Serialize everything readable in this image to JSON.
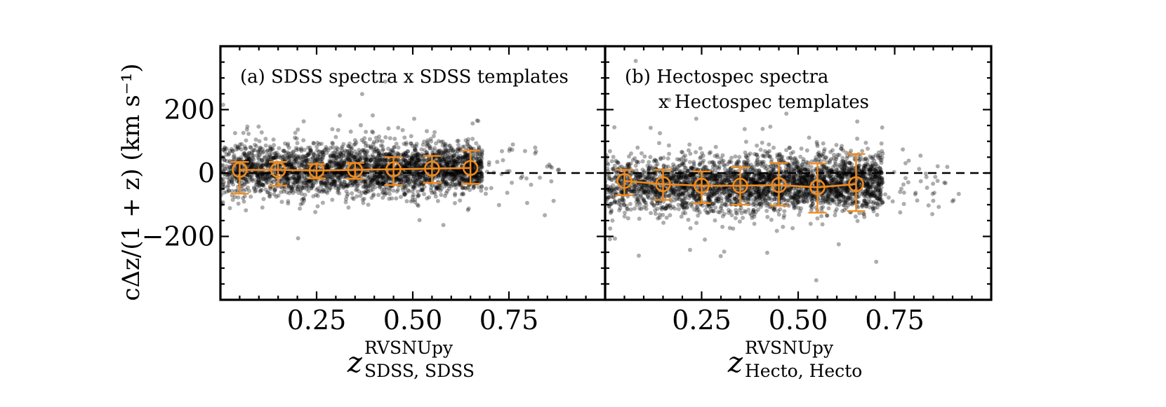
{
  "figure": {
    "ylabel": "cΔz/(1 + z) (km s⁻¹)"
  },
  "chart_data": [
    {
      "type": "scatter",
      "panel_label_lines": [
        "(a) SDSS spectra x SDSS templates"
      ],
      "xlabel_main": "z",
      "xlabel_superscript": "RVSNUpy",
      "xlabel_subscript": "SDSS, SDSS",
      "xlim": [
        0.0,
        1.0
      ],
      "ylim": [
        -400,
        400
      ],
      "x_ticks": [
        0.25,
        0.5,
        0.75
      ],
      "x_tick_labels": [
        "0.25",
        "0.50",
        "0.75"
      ],
      "y_ticks": [
        -200,
        0,
        200
      ],
      "y_tick_labels": [
        "−200",
        "0",
        "200"
      ],
      "reference_line_y": 0,
      "scatter_model": {
        "n": 3000,
        "x_range": [
          0.0,
          0.68
        ],
        "y_mean": 10,
        "y_sigma": 40,
        "seed": 11
      },
      "binned": {
        "x": [
          0.05,
          0.15,
          0.25,
          0.35,
          0.45,
          0.55,
          0.65
        ],
        "y": [
          10,
          10,
          8,
          10,
          12,
          14,
          16
        ],
        "err_low": [
          75,
          50,
          25,
          28,
          50,
          45,
          50
        ],
        "err_high": [
          25,
          25,
          20,
          22,
          38,
          40,
          55
        ]
      }
    },
    {
      "type": "scatter",
      "panel_label_lines": [
        "(b) Hectospec spectra",
        "x Hectospec templates"
      ],
      "xlabel_main": "z",
      "xlabel_superscript": "RVSNUpy",
      "xlabel_subscript": "Hecto, Hecto",
      "xlim": [
        0.0,
        1.0
      ],
      "ylim": [
        -400,
        400
      ],
      "x_ticks": [
        0.25,
        0.5,
        0.75
      ],
      "x_tick_labels": [
        "0.25",
        "0.50",
        "0.75"
      ],
      "y_ticks": [
        -200,
        0,
        200
      ],
      "y_tick_labels": [
        "−200",
        "0",
        "200"
      ],
      "reference_line_y": 0,
      "scatter_model": {
        "n": 3200,
        "x_range": [
          0.0,
          0.72
        ],
        "y_mean": -35,
        "y_sigma": 45,
        "seed": 29
      },
      "binned": {
        "x": [
          0.05,
          0.15,
          0.25,
          0.35,
          0.45,
          0.55,
          0.65
        ],
        "y": [
          -25,
          -35,
          -40,
          -40,
          -38,
          -45,
          -35
        ],
        "err_low": [
          45,
          50,
          55,
          60,
          65,
          80,
          85
        ],
        "err_high": [
          35,
          45,
          45,
          58,
          70,
          75,
          95
        ]
      }
    }
  ],
  "colors": {
    "point": "#000000",
    "binned": "#f08a1c",
    "axis": "#000000"
  }
}
